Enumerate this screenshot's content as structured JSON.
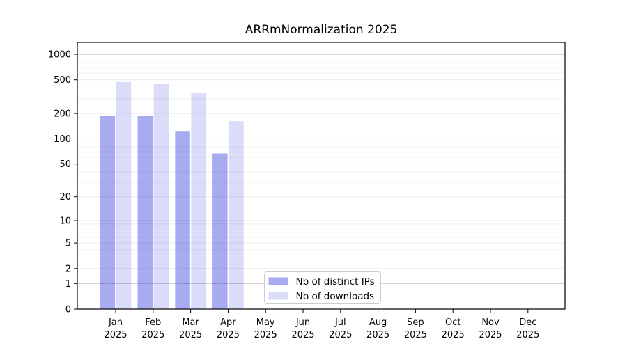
{
  "chart_data": {
    "type": "bar",
    "title": "ARRmNormalization 2025",
    "xlabel": "",
    "ylabel": "",
    "categories": [
      "Jan 2025",
      "Feb 2025",
      "Mar 2025",
      "Apr 2025",
      "May 2025",
      "Jun 2025",
      "Jul 2025",
      "Aug 2025",
      "Sep 2025",
      "Oct 2025",
      "Nov 2025",
      "Dec 2025"
    ],
    "series": [
      {
        "name": "Nb of distinct IPs",
        "color": "#a7abf2",
        "values": [
          187,
          186,
          124,
          67,
          0,
          0,
          0,
          0,
          0,
          0,
          0,
          0
        ]
      },
      {
        "name": "Nb of downloads",
        "color": "#dadcfa",
        "values": [
          470,
          452,
          352,
          162,
          0,
          0,
          0,
          0,
          0,
          0,
          0,
          0
        ]
      }
    ],
    "yscale": "log1p",
    "yticks": [
      0,
      1,
      2,
      5,
      10,
      20,
      50,
      100,
      200,
      500,
      1000
    ],
    "ylim": [
      0,
      1380
    ],
    "grid": "both",
    "legend": {
      "labels": [
        "Nb of distinct IPs",
        "Nb of downloads"
      ],
      "position": "lower center inside"
    }
  }
}
